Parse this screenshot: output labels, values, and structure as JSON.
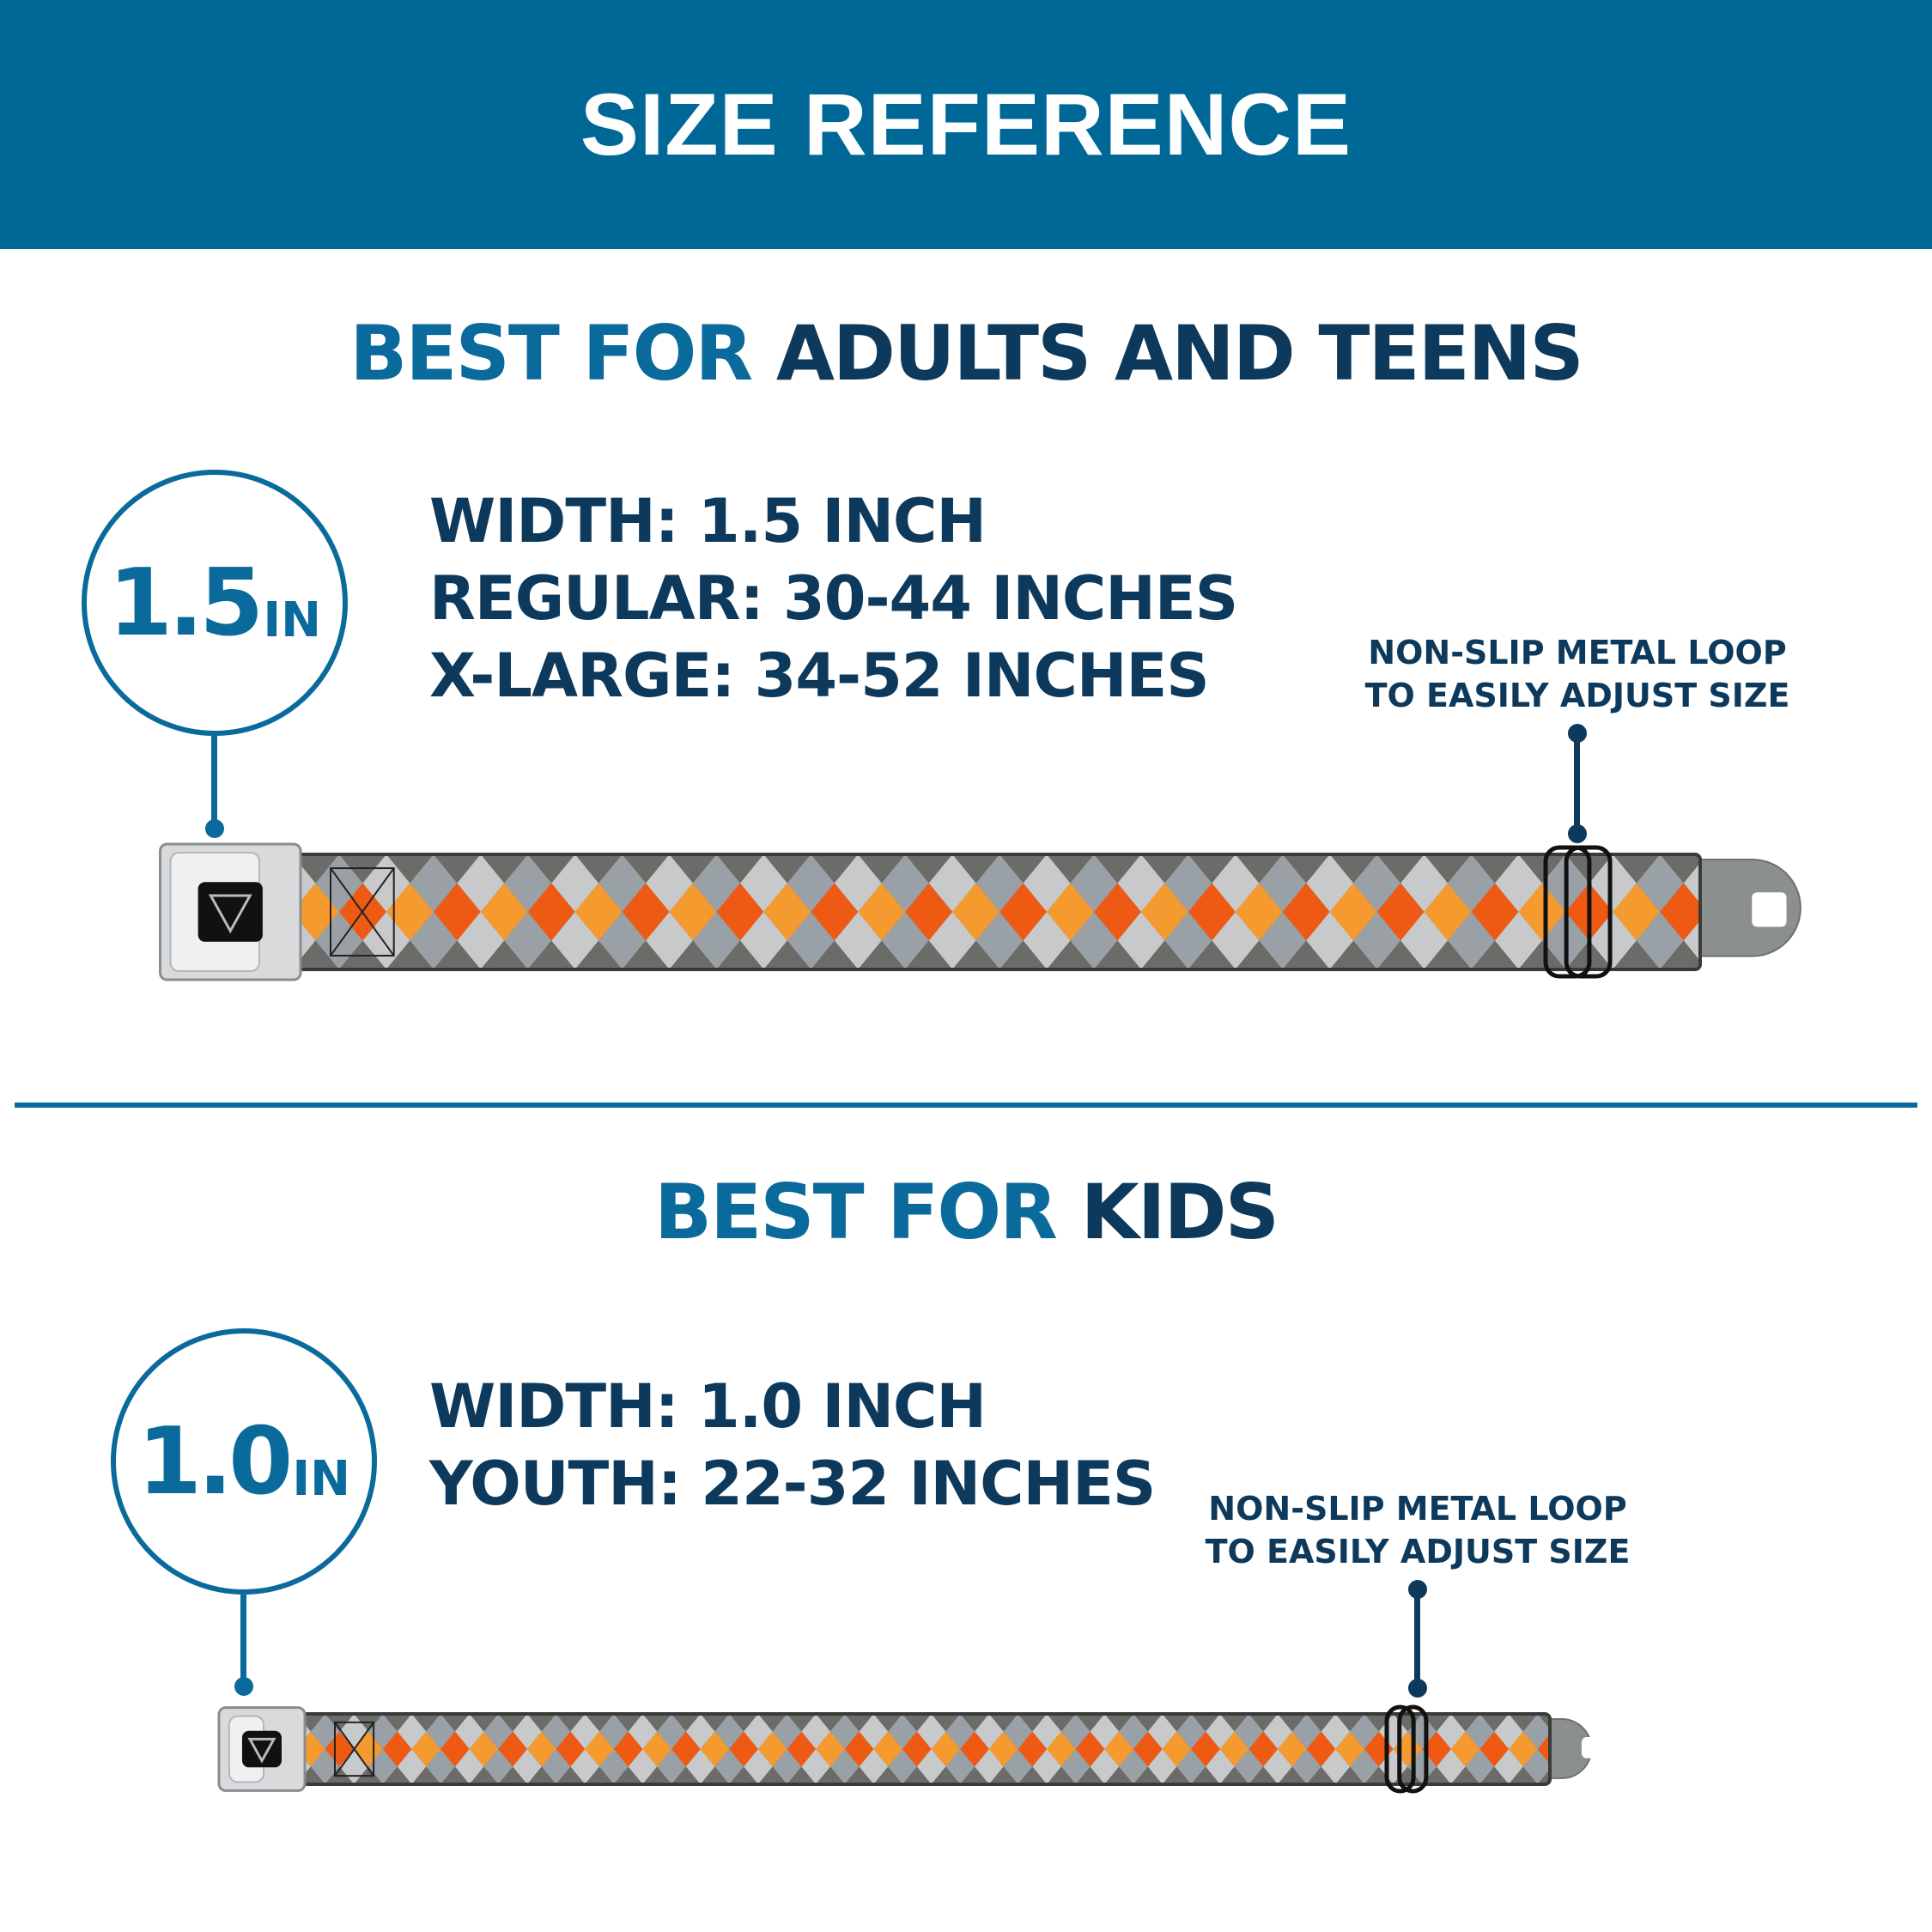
{
  "header": {
    "title": "SIZE REFERENCE"
  },
  "colors": {
    "header_bg": "#006897",
    "accent_blue": "#0a6a9c",
    "navy": "#0d3a5c",
    "orange_red": "#ee5a14",
    "orange": "#f59a2e"
  },
  "adults": {
    "title_prefix": "BEST FOR",
    "title_main": "ADULTS AND TEENS",
    "width_badge": {
      "number": "1.5",
      "unit": "IN"
    },
    "specs": [
      "WIDTH: 1.5 INCH",
      "REGULAR: 30-44 INCHES",
      "X-LARGE: 34-52 INCHES"
    ],
    "callout": [
      "NON-SLIP METAL LOOP",
      "TO EASILY ADJUST SIZE"
    ],
    "belt_image": "seatbelt-belt-argyle-orange-gray"
  },
  "kids": {
    "title_prefix": "BEST FOR",
    "title_main": "KIDS",
    "width_badge": {
      "number": "1.0",
      "unit": "IN"
    },
    "specs": [
      "WIDTH: 1.0 INCH",
      "YOUTH: 22-32 INCHES"
    ],
    "callout": [
      "NON-SLIP METAL LOOP",
      "TO EASILY ADJUST SIZE"
    ],
    "belt_image": "seatbelt-belt-argyle-orange-gray"
  }
}
